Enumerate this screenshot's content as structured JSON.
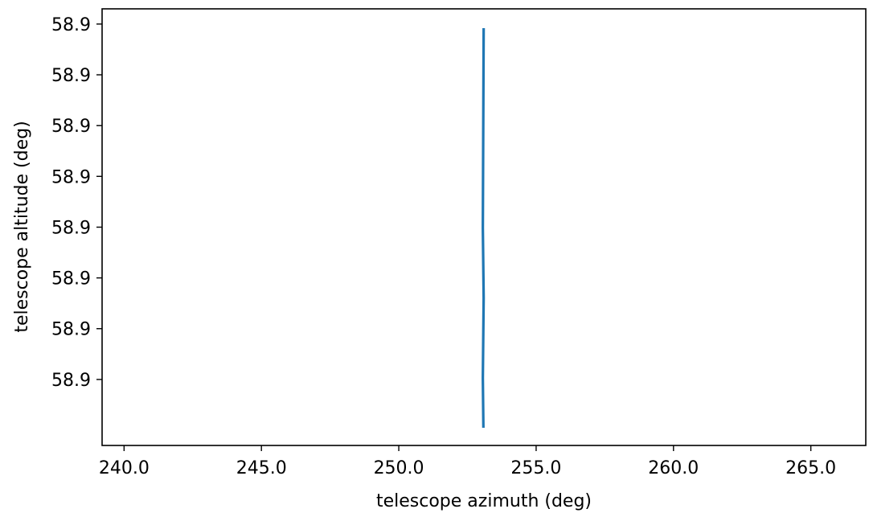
{
  "chart_data": {
    "type": "line",
    "title": "",
    "xlabel": "telescope azimuth (deg)",
    "ylabel": "telescope altitude (deg)",
    "xlim": [
      239.2,
      267.0
    ],
    "ylim": [
      0.0,
      8.0
    ],
    "x_ticks": [
      240.0,
      245.0,
      250.0,
      255.0,
      260.0,
      265.0
    ],
    "x_tick_labels": [
      "240.0",
      "245.0",
      "250.0",
      "255.0",
      "260.0",
      "265.0"
    ],
    "y_ticks": [
      0.967,
      1.984,
      3.0,
      4.016,
      5.033,
      6.049,
      7.066,
      8.082
    ],
    "y_tick_labels": [
      "58.9",
      "58.9",
      "58.9",
      "58.9",
      "58.9",
      "58.9",
      "58.9",
      "58.9"
    ],
    "y_tick_note": "",
    "grid": false,
    "series": [
      {
        "name": "",
        "color": "#1f77b4",
        "x": [
          253.08,
          253.06,
          253.09,
          253.06,
          253.09
        ],
        "y": [
          0.0,
          1.0,
          2.6,
          4.0,
          8.0
        ]
      }
    ]
  }
}
